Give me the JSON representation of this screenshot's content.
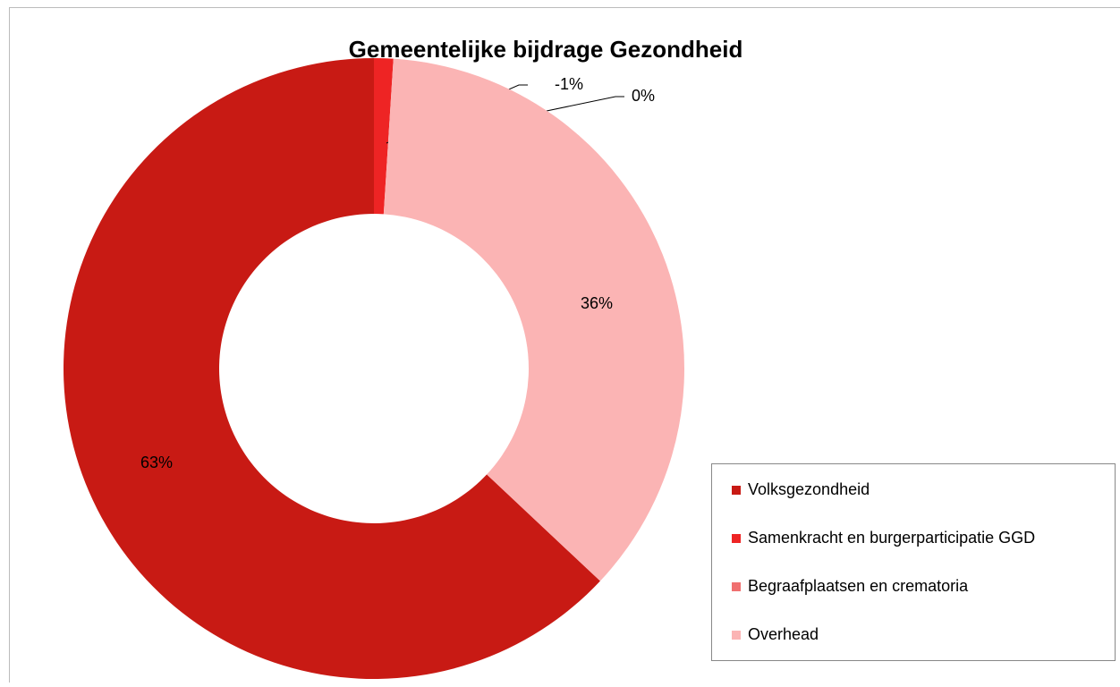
{
  "chart_data": {
    "type": "donut",
    "title": "Gemeentelijke bijdrage Gezondheid",
    "categories": [
      "Volksgezondheid",
      "Samenkracht en burgerparticipatie GGD",
      "Begraafplaatsen en crematoria",
      "Overhead"
    ],
    "values": [
      63,
      -1,
      0,
      36
    ],
    "value_labels": [
      "63%",
      "-1%",
      "0%",
      "36%"
    ],
    "colors": [
      "#c81a14",
      "#ee2424",
      "#f07070",
      "#fbb4b4"
    ],
    "legend": "right"
  }
}
